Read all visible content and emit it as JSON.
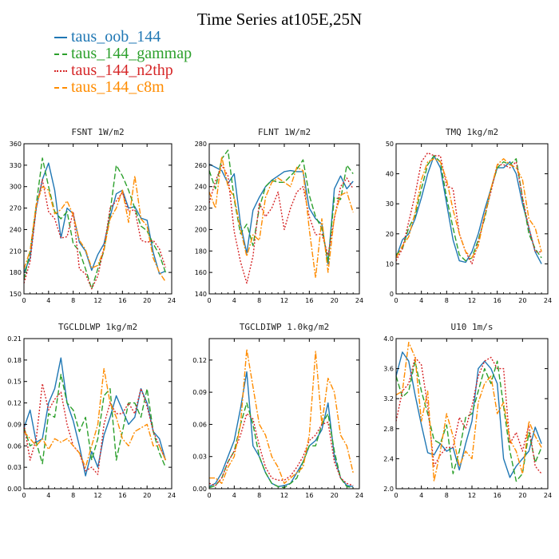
{
  "figure": {
    "title": "Time Series at105E,25N"
  },
  "legend": [
    {
      "label": "taus_oob_144",
      "color": "#1f77b4",
      "dash": "solid"
    },
    {
      "label": "taus_144_gammap",
      "color": "#2ca02c",
      "dash": "longdash"
    },
    {
      "label": "taus_144_n2thp",
      "color": "#d62728",
      "dash": "dot"
    },
    {
      "label": "taus_144_c8m",
      "color": "#ff8c00",
      "dash": "dashdot"
    }
  ],
  "chart_data": [
    {
      "type": "line",
      "title": "FSNT   1W/m2",
      "xlim": [
        0,
        24
      ],
      "xticks": [
        0,
        4,
        8,
        12,
        16,
        20,
        24
      ],
      "ylim": [
        150,
        360
      ],
      "yticks": [
        150,
        180,
        210,
        240,
        270,
        300,
        330,
        360
      ],
      "x": [
        0,
        1,
        2,
        3,
        4,
        5,
        6,
        7,
        8,
        9,
        10,
        11,
        12,
        13,
        14,
        15,
        16,
        17,
        18,
        19,
        20,
        21,
        22,
        23
      ],
      "series": [
        {
          "name": "taus_oob_144",
          "values": [
            180,
            200,
            270,
            310,
            333,
            295,
            228,
            270,
            262,
            222,
            210,
            183,
            205,
            220,
            258,
            290,
            295,
            270,
            272,
            256,
            253,
            208,
            178,
            182
          ]
        },
        {
          "name": "taus_144_gammap",
          "values": [
            170,
            210,
            275,
            340,
            300,
            265,
            255,
            265,
            220,
            210,
            185,
            157,
            185,
            210,
            265,
            330,
            315,
            295,
            270,
            245,
            238,
            220,
            205,
            180
          ]
        },
        {
          "name": "taus_144_n2thp",
          "values": [
            165,
            195,
            270,
            310,
            265,
            255,
            228,
            230,
            265,
            185,
            178,
            157,
            175,
            215,
            270,
            280,
            292,
            265,
            268,
            225,
            222,
            225,
            213,
            187
          ]
        },
        {
          "name": "taus_144_c8m",
          "values": [
            185,
            210,
            275,
            300,
            295,
            262,
            268,
            280,
            260,
            225,
            212,
            186,
            190,
            212,
            255,
            270,
            295,
            250,
            315,
            255,
            245,
            200,
            180,
            167
          ]
        }
      ]
    },
    {
      "type": "line",
      "title": "FLNT   1W/m2",
      "xlim": [
        0,
        24
      ],
      "xticks": [
        0,
        4,
        8,
        12,
        16,
        20,
        24
      ],
      "ylim": [
        140,
        280
      ],
      "yticks": [
        140,
        160,
        180,
        200,
        220,
        240,
        260,
        280
      ],
      "x": [
        0,
        1,
        2,
        3,
        4,
        5,
        6,
        7,
        8,
        9,
        10,
        11,
        12,
        13,
        14,
        15,
        16,
        17,
        18,
        19,
        20,
        21,
        22,
        23
      ],
      "series": [
        {
          "name": "taus_oob_144",
          "values": [
            261,
            258,
            255,
            243,
            252,
            205,
            178,
            218,
            230,
            240,
            246,
            250,
            254,
            255,
            254,
            254,
            220,
            210,
            205,
            168,
            238,
            250,
            238,
            245
          ]
        },
        {
          "name": "taus_144_gammap",
          "values": [
            255,
            238,
            266,
            274,
            228,
            196,
            205,
            185,
            220,
            240,
            246,
            244,
            244,
            250,
            256,
            265,
            232,
            212,
            201,
            170,
            230,
            228,
            260,
            252
          ]
        },
        {
          "name": "taus_144_n2thp",
          "values": [
            225,
            245,
            260,
            250,
            198,
            170,
            150,
            175,
            225,
            212,
            220,
            235,
            200,
            220,
            235,
            240,
            212,
            195,
            196,
            176,
            210,
            240,
            248,
            238
          ]
        },
        {
          "name": "taus_144_c8m",
          "values": [
            235,
            220,
            268,
            240,
            230,
            200,
            175,
            195,
            190,
            230,
            244,
            248,
            244,
            240,
            258,
            255,
            200,
            155,
            210,
            160,
            212,
            232,
            235,
            216
          ]
        }
      ]
    },
    {
      "type": "line",
      "title": "TMQ   1kg/m2",
      "xlim": [
        0,
        24
      ],
      "xticks": [
        0,
        4,
        8,
        12,
        16,
        20,
        24
      ],
      "ylim": [
        0,
        50
      ],
      "yticks": [
        0,
        10,
        20,
        30,
        40,
        50
      ],
      "x": [
        0,
        1,
        2,
        3,
        4,
        5,
        6,
        7,
        8,
        9,
        10,
        11,
        12,
        13,
        14,
        15,
        16,
        17,
        18,
        19,
        20,
        21,
        22,
        23
      ],
      "series": [
        {
          "name": "taus_oob_144",
          "values": [
            12,
            18,
            20,
            25,
            32,
            40,
            46,
            42,
            30,
            18,
            11,
            10.5,
            14,
            20,
            28,
            35,
            42,
            42,
            44,
            40,
            30,
            22,
            14,
            10
          ]
        },
        {
          "name": "taus_144_gammap",
          "values": [
            13,
            15,
            22,
            26,
            35,
            43,
            46,
            44,
            32,
            22,
            13,
            11,
            12,
            18,
            25,
            35,
            42,
            44,
            43,
            45,
            32,
            20,
            15,
            12
          ]
        },
        {
          "name": "taus_144_n2thp",
          "values": [
            11,
            15,
            24,
            33,
            44,
            47,
            46,
            46,
            36,
            35,
            20,
            14,
            10,
            17,
            26,
            34,
            43,
            43,
            42,
            44,
            32,
            22,
            14,
            14
          ]
        },
        {
          "name": "taus_144_c8m",
          "values": [
            12,
            16,
            19,
            27,
            38,
            44,
            45,
            44,
            38,
            28,
            20,
            14,
            12,
            16,
            26,
            35,
            43,
            45,
            43,
            42,
            38,
            25,
            22,
            14
          ]
        }
      ]
    },
    {
      "type": "line",
      "title": "TGCLDLWP   1kg/m2",
      "xlim": [
        0,
        24
      ],
      "xticks": [
        0,
        4,
        8,
        12,
        16,
        20,
        24
      ],
      "ylim": [
        0,
        0.21
      ],
      "yticks": [
        0.0,
        0.03,
        0.06,
        0.09,
        0.12,
        0.15,
        0.18,
        0.21
      ],
      "x": [
        0,
        1,
        2,
        3,
        4,
        5,
        6,
        7,
        8,
        9,
        10,
        11,
        12,
        13,
        14,
        15,
        16,
        17,
        18,
        19,
        20,
        21,
        22,
        23
      ],
      "series": [
        {
          "name": "taus_oob_144",
          "values": [
            0.085,
            0.11,
            0.065,
            0.07,
            0.12,
            0.14,
            0.183,
            0.12,
            0.095,
            0.06,
            0.018,
            0.052,
            0.03,
            0.075,
            0.1,
            0.13,
            0.11,
            0.09,
            0.1,
            0.14,
            0.12,
            0.08,
            0.07,
            0.04
          ]
        },
        {
          "name": "taus_144_gammap",
          "values": [
            0.085,
            0.06,
            0.065,
            0.035,
            0.105,
            0.1,
            0.16,
            0.12,
            0.11,
            0.08,
            0.1,
            0.04,
            0.07,
            0.13,
            0.14,
            0.04,
            0.08,
            0.12,
            0.12,
            0.1,
            0.14,
            0.08,
            0.05,
            0.03
          ]
        },
        {
          "name": "taus_144_n2thp",
          "values": [
            0.09,
            0.04,
            0.07,
            0.147,
            0.11,
            0.125,
            0.135,
            0.09,
            0.06,
            0.05,
            0.025,
            0.03,
            0.02,
            0.09,
            0.12,
            0.105,
            0.105,
            0.12,
            0.105,
            0.14,
            0.115,
            0.08,
            0.06,
            0.04
          ]
        },
        {
          "name": "taus_144_c8m",
          "values": [
            0.08,
            0.07,
            0.06,
            0.07,
            0.055,
            0.07,
            0.065,
            0.07,
            0.06,
            0.05,
            0.03,
            0.06,
            0.09,
            0.168,
            0.12,
            0.1,
            0.07,
            0.06,
            0.08,
            0.085,
            0.09,
            0.06,
            0.06,
            0.04
          ]
        }
      ]
    },
    {
      "type": "line",
      "title": "TGCLDIWP   1.0kg/m2",
      "xlim": [
        0,
        24
      ],
      "xticks": [
        0,
        4,
        8,
        12,
        16,
        20,
        24
      ],
      "ylim": [
        0,
        0.14
      ],
      "yticks": [
        0.0,
        0.03,
        0.06,
        0.09,
        0.12
      ],
      "x": [
        0,
        1,
        2,
        3,
        4,
        5,
        6,
        7,
        8,
        9,
        10,
        11,
        12,
        13,
        14,
        15,
        16,
        17,
        18,
        19,
        20,
        21,
        22,
        23
      ],
      "series": [
        {
          "name": "taus_oob_144",
          "values": [
            0.002,
            0.005,
            0.015,
            0.03,
            0.045,
            0.075,
            0.109,
            0.04,
            0.03,
            0.015,
            0.005,
            0.002,
            0.003,
            0.005,
            0.015,
            0.025,
            0.04,
            0.045,
            0.055,
            0.08,
            0.03,
            0.01,
            0.003,
            0.002
          ]
        },
        {
          "name": "taus_144_gammap",
          "values": [
            0.001,
            0.003,
            0.01,
            0.025,
            0.035,
            0.06,
            0.08,
            0.06,
            0.03,
            0.015,
            0.005,
            0.002,
            0.001,
            0.005,
            0.01,
            0.025,
            0.04,
            0.04,
            0.06,
            0.07,
            0.035,
            0.01,
            0.002,
            0.001
          ]
        },
        {
          "name": "taus_144_n2thp",
          "values": [
            0.005,
            0.003,
            0.01,
            0.025,
            0.035,
            0.05,
            0.07,
            0.065,
            0.04,
            0.02,
            0.01,
            0.008,
            0.008,
            0.012,
            0.02,
            0.03,
            0.045,
            0.05,
            0.06,
            0.062,
            0.025,
            0.01,
            0.005,
            0.003
          ]
        },
        {
          "name": "taus_144_c8m",
          "values": [
            0.01,
            0.01,
            0.005,
            0.02,
            0.03,
            0.06,
            0.13,
            0.095,
            0.06,
            0.05,
            0.03,
            0.02,
            0.005,
            0.01,
            0.015,
            0.02,
            0.05,
            0.128,
            0.06,
            0.103,
            0.09,
            0.05,
            0.04,
            0.015
          ]
        }
      ]
    },
    {
      "type": "line",
      "title": "U10   1m/s",
      "xlim": [
        0,
        24
      ],
      "xticks": [
        0,
        4,
        8,
        12,
        16,
        20,
        24
      ],
      "ylim": [
        2.0,
        4.0
      ],
      "yticks": [
        2.0,
        2.4,
        2.8,
        3.2,
        3.6,
        4.0
      ],
      "x": [
        0,
        1,
        2,
        3,
        4,
        5,
        6,
        7,
        8,
        9,
        10,
        11,
        12,
        13,
        14,
        15,
        16,
        17,
        18,
        19,
        20,
        21,
        22,
        23
      ],
      "series": [
        {
          "name": "taus_oob_144",
          "values": [
            3.5,
            3.82,
            3.7,
            3.25,
            2.85,
            2.48,
            2.45,
            2.6,
            2.5,
            2.55,
            2.25,
            2.6,
            2.9,
            3.6,
            3.7,
            3.6,
            3.4,
            2.4,
            2.15,
            2.3,
            2.4,
            2.5,
            2.82,
            2.6
          ]
        },
        {
          "name": "taus_144_gammap",
          "values": [
            3.5,
            3.22,
            3.3,
            3.7,
            3.3,
            3.0,
            2.65,
            2.6,
            2.85,
            2.2,
            2.5,
            2.95,
            3.0,
            3.3,
            3.6,
            3.4,
            3.7,
            3.1,
            2.5,
            2.1,
            2.2,
            2.75,
            2.35,
            2.55
          ]
        },
        {
          "name": "taus_144_n2thp",
          "values": [
            2.9,
            3.3,
            3.4,
            3.75,
            3.65,
            3.1,
            2.3,
            2.45,
            2.55,
            2.55,
            2.95,
            2.8,
            3.1,
            3.5,
            3.7,
            3.75,
            3.6,
            3.6,
            2.6,
            2.75,
            2.5,
            2.85,
            2.3,
            2.2
          ]
        },
        {
          "name": "taus_144_c8m",
          "values": [
            3.25,
            3.3,
            3.95,
            3.75,
            2.9,
            3.3,
            2.1,
            2.5,
            3.0,
            2.7,
            2.3,
            2.5,
            2.4,
            3.15,
            3.4,
            3.5,
            3.0,
            3.15,
            2.65,
            2.5,
            2.2,
            2.9,
            2.7,
            2.55
          ]
        }
      ]
    }
  ]
}
